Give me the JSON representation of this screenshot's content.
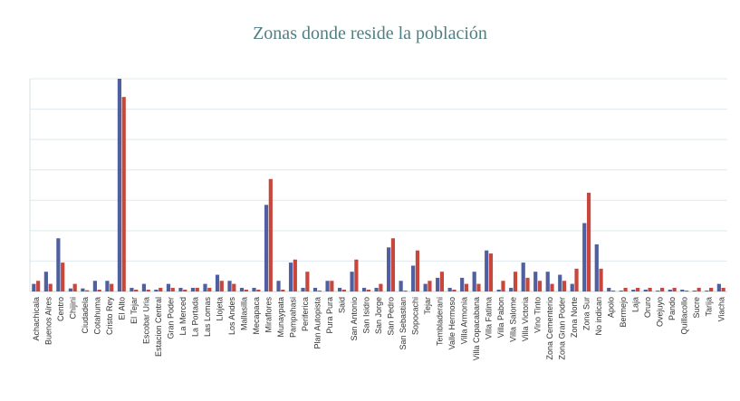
{
  "chart_data": {
    "type": "bar",
    "title": "Zonas donde reside la población",
    "xlabel": "",
    "ylabel": "",
    "ylim": [
      0,
      70
    ],
    "grid": true,
    "legend": "none",
    "categories": [
      "Achachicala",
      "Buenos Aires",
      "Centro",
      "Chijini",
      "Ciudadela",
      "Cotahuma",
      "Cristo Rey",
      "El Alto",
      "El Tejar",
      "Escobar Uria",
      "Estacion Central",
      "Gran Poder",
      "La Merced",
      "La Portada",
      "Las Lomas",
      "Llojeta",
      "Los Andes",
      "Mallasilla",
      "Mecapaca",
      "Miraflores",
      "Munaypata",
      "Pampahasi",
      "Periferica",
      "Plan Autopista",
      "Pura Pura",
      "Said",
      "San Antonio",
      "San Isidro",
      "San Jorge",
      "San Pedro",
      "San Sebastian",
      "Sopocachi",
      "Tejar",
      "Tembladerani",
      "Valle Hermoso",
      "Villa Armonia",
      "Villa Copacabana",
      "Villa Fatima",
      "Villa Pabon",
      "Villa Salome",
      "Villa Victoria",
      "Vino Tinto",
      "Zona Cementerio",
      "Zona Gran Poder",
      "Zona Norte",
      "Zona Sur",
      "No indican",
      "Apolo",
      "Bermejo",
      "Laja",
      "Oruro",
      "Ovejuyo",
      "Pando",
      "Quillacollo",
      "Sucre",
      "Tarija",
      "Viacha"
    ],
    "series": [
      {
        "values": [
          2.5,
          6.5,
          17.5,
          1,
          1,
          3.5,
          3.5,
          70,
          1.2,
          2.5,
          0.6,
          2.5,
          1.2,
          1.2,
          2.5,
          5.5,
          3.5,
          1.2,
          1.2,
          28.5,
          3.5,
          9.5,
          1.2,
          1.2,
          3.5,
          1.2,
          6.5,
          1.2,
          1.2,
          14.5,
          3.5,
          8.5,
          2.5,
          4.5,
          1.2,
          4.5,
          6.5,
          13.5,
          0.6,
          1.2,
          9.5,
          6.5,
          6.5,
          5.5,
          2.5,
          22.5,
          15.5,
          1.2,
          0.3,
          0.6,
          0.6,
          0.3,
          0.6,
          0.6,
          0.3,
          0.3,
          2.5
        ]
      },
      {
        "values": [
          3.5,
          2.5,
          9.5,
          2.5,
          0.4,
          0.6,
          2.5,
          64,
          0.6,
          0.6,
          1.2,
          1.2,
          0.6,
          1.2,
          1.2,
          3.5,
          2.5,
          0.6,
          0.6,
          37,
          0.6,
          10.5,
          6.5,
          0.3,
          3.5,
          0.6,
          10.5,
          0.6,
          2.5,
          17.5,
          0.3,
          13.5,
          3.5,
          6.5,
          0.6,
          2.5,
          2.5,
          12.5,
          3.5,
          6.5,
          4.5,
          3.5,
          2.5,
          3.5,
          7.5,
          32.5,
          7.5,
          0.3,
          1.2,
          1.2,
          1.2,
          1.2,
          1.2,
          0.3,
          1.2,
          1.2,
          1.2
        ]
      }
    ],
    "colors": {
      "series1": "#4f5fa0",
      "series2": "#c8473d",
      "grid": "#dfe9ee"
    }
  }
}
